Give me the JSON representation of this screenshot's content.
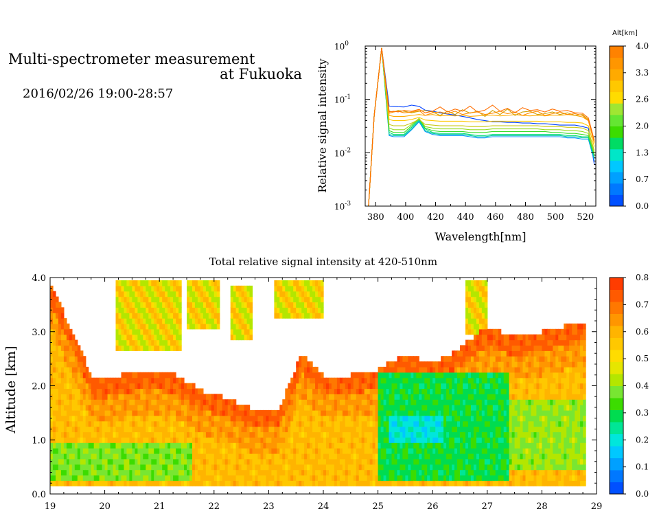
{
  "header": {
    "title_line1": "Multi-spectrometer measurement",
    "title_line2": "at Fukuoka",
    "timerange": "2016/02/26 19:00-28:57"
  },
  "chart_data": [
    {
      "type": "line",
      "title": "",
      "xlabel": "Wavelength[nm]",
      "ylabel": "Relative signal intensity",
      "xlim": [
        373,
        527
      ],
      "ylim": [
        0.001,
        1
      ],
      "yscale": "log",
      "x_ticks": [
        380,
        400,
        420,
        440,
        460,
        480,
        500,
        520
      ],
      "y_ticks": [
        {
          "value": 0.001,
          "base": "10",
          "exp": "-3"
        },
        {
          "value": 0.01,
          "base": "10",
          "exp": "-2"
        },
        {
          "value": 0.1,
          "base": "10",
          "exp": "-1"
        },
        {
          "value": 1,
          "base": "10",
          "exp": "0"
        }
      ],
      "x": [
        375,
        379,
        384,
        389,
        392,
        395,
        399,
        404,
        409,
        413,
        418,
        423,
        428,
        433,
        438,
        443,
        448,
        453,
        458,
        463,
        468,
        473,
        478,
        483,
        488,
        493,
        498,
        503,
        508,
        513,
        518,
        522,
        526
      ],
      "series": [
        {
          "color": "#0040ff",
          "values": [
            0.0008,
            0.05,
            0.92,
            0.075,
            0.074,
            0.073,
            0.072,
            0.078,
            0.074,
            0.063,
            0.06,
            0.056,
            0.053,
            0.051,
            0.048,
            0.045,
            0.042,
            0.04,
            0.038,
            0.038,
            0.037,
            0.037,
            0.036,
            0.036,
            0.035,
            0.035,
            0.034,
            0.033,
            0.033,
            0.033,
            0.031,
            0.029,
            0.006
          ]
        },
        {
          "color": "#0096ff",
          "values": [
            0.0008,
            0.05,
            0.92,
            0.021,
            0.02,
            0.02,
            0.02,
            0.027,
            0.038,
            0.025,
            0.022,
            0.021,
            0.021,
            0.021,
            0.021,
            0.02,
            0.019,
            0.019,
            0.02,
            0.02,
            0.02,
            0.02,
            0.02,
            0.02,
            0.02,
            0.02,
            0.02,
            0.02,
            0.019,
            0.019,
            0.018,
            0.018,
            0.007
          ]
        },
        {
          "color": "#00c8a0",
          "values": [
            0.0008,
            0.05,
            0.92,
            0.022,
            0.021,
            0.021,
            0.021,
            0.028,
            0.04,
            0.026,
            0.023,
            0.022,
            0.022,
            0.022,
            0.022,
            0.021,
            0.02,
            0.02,
            0.021,
            0.021,
            0.021,
            0.021,
            0.021,
            0.021,
            0.021,
            0.021,
            0.021,
            0.021,
            0.02,
            0.02,
            0.019,
            0.019,
            0.008
          ]
        },
        {
          "color": "#00dc78",
          "values": [
            0.0008,
            0.05,
            0.92,
            0.024,
            0.022,
            0.022,
            0.022,
            0.03,
            0.042,
            0.028,
            0.024,
            0.023,
            0.023,
            0.023,
            0.023,
            0.022,
            0.021,
            0.021,
            0.022,
            0.022,
            0.022,
            0.022,
            0.022,
            0.022,
            0.022,
            0.022,
            0.022,
            0.022,
            0.021,
            0.021,
            0.02,
            0.02,
            0.008
          ]
        },
        {
          "color": "#3cdc28",
          "values": [
            0.0008,
            0.05,
            0.92,
            0.026,
            0.024,
            0.024,
            0.024,
            0.032,
            0.044,
            0.029,
            0.026,
            0.025,
            0.025,
            0.025,
            0.025,
            0.024,
            0.024,
            0.024,
            0.025,
            0.025,
            0.025,
            0.025,
            0.025,
            0.025,
            0.025,
            0.025,
            0.024,
            0.024,
            0.023,
            0.023,
            0.022,
            0.021,
            0.009
          ]
        },
        {
          "color": "#96dc1e",
          "values": [
            0.0008,
            0.05,
            0.92,
            0.029,
            0.027,
            0.027,
            0.027,
            0.034,
            0.044,
            0.031,
            0.029,
            0.028,
            0.028,
            0.028,
            0.028,
            0.027,
            0.027,
            0.027,
            0.028,
            0.028,
            0.028,
            0.028,
            0.028,
            0.028,
            0.028,
            0.027,
            0.027,
            0.027,
            0.026,
            0.026,
            0.025,
            0.023,
            0.01
          ]
        },
        {
          "color": "#c8c814",
          "values": [
            0.0008,
            0.05,
            0.92,
            0.034,
            0.032,
            0.032,
            0.032,
            0.036,
            0.042,
            0.034,
            0.033,
            0.032,
            0.032,
            0.032,
            0.032,
            0.031,
            0.031,
            0.031,
            0.032,
            0.032,
            0.032,
            0.032,
            0.032,
            0.032,
            0.032,
            0.031,
            0.031,
            0.031,
            0.03,
            0.03,
            0.029,
            0.026,
            0.011
          ]
        },
        {
          "color": "#ffc800",
          "values": [
            0.0008,
            0.05,
            0.92,
            0.042,
            0.04,
            0.04,
            0.04,
            0.042,
            0.046,
            0.041,
            0.04,
            0.039,
            0.039,
            0.039,
            0.039,
            0.038,
            0.038,
            0.038,
            0.039,
            0.039,
            0.039,
            0.039,
            0.039,
            0.039,
            0.039,
            0.038,
            0.038,
            0.038,
            0.037,
            0.037,
            0.036,
            0.032,
            0.013
          ]
        },
        {
          "color": "#ffaa00",
          "values": [
            0.0008,
            0.05,
            0.92,
            0.05,
            0.048,
            0.048,
            0.048,
            0.05,
            0.052,
            0.05,
            0.052,
            0.049,
            0.05,
            0.049,
            0.051,
            0.048,
            0.049,
            0.05,
            0.051,
            0.049,
            0.05,
            0.052,
            0.05,
            0.049,
            0.05,
            0.049,
            0.051,
            0.05,
            0.052,
            0.05,
            0.047,
            0.04,
            0.015
          ]
        },
        {
          "color": "#d2a000",
          "values": [
            0.0008,
            0.05,
            0.92,
            0.06,
            0.058,
            0.062,
            0.06,
            0.056,
            0.06,
            0.062,
            0.058,
            0.05,
            0.06,
            0.052,
            0.064,
            0.055,
            0.06,
            0.048,
            0.062,
            0.052,
            0.066,
            0.05,
            0.058,
            0.06,
            0.052,
            0.054,
            0.058,
            0.052,
            0.056,
            0.05,
            0.052,
            0.042,
            0.016
          ]
        },
        {
          "color": "#ff8c00",
          "values": [
            0.0008,
            0.05,
            0.92,
            0.055,
            0.058,
            0.06,
            0.056,
            0.058,
            0.062,
            0.05,
            0.056,
            0.058,
            0.054,
            0.06,
            0.052,
            0.056,
            0.058,
            0.052,
            0.055,
            0.06,
            0.054,
            0.058,
            0.05,
            0.056,
            0.06,
            0.05,
            0.054,
            0.058,
            0.052,
            0.054,
            0.05,
            0.04,
            0.016
          ]
        },
        {
          "color": "#ff6e00",
          "values": [
            0.0008,
            0.05,
            0.92,
            0.058,
            0.06,
            0.058,
            0.062,
            0.06,
            0.065,
            0.056,
            0.06,
            0.072,
            0.058,
            0.066,
            0.06,
            0.075,
            0.058,
            0.063,
            0.078,
            0.06,
            0.068,
            0.056,
            0.07,
            0.062,
            0.064,
            0.058,
            0.066,
            0.06,
            0.062,
            0.056,
            0.055,
            0.045,
            0.017
          ]
        }
      ],
      "colorbar": {
        "label": "Alt[km]",
        "ticks": [
          "0.0",
          "0.7",
          "1.3",
          "2.0",
          "2.6",
          "3.3",
          "4.0"
        ],
        "colors": [
          "#0050ff",
          "#0078ff",
          "#00a0ff",
          "#00c8ff",
          "#00e6c8",
          "#00dc64",
          "#3cdc00",
          "#64e632",
          "#a0e632",
          "#ffdc00",
          "#ffc800",
          "#ffaa00",
          "#ff9600",
          "#ff8200"
        ]
      }
    },
    {
      "type": "heatmap",
      "title": "Total relative signal intensity at 420-510nm",
      "xlabel": "",
      "ylabel": "Altitude [km]",
      "xlim": [
        19,
        29
      ],
      "ylim": [
        0,
        4
      ],
      "x_ticks": [
        "19",
        "20",
        "21",
        "22",
        "23",
        "24",
        "25",
        "26",
        "27",
        "28",
        "29"
      ],
      "y_ticks": [
        "0.0",
        "1.0",
        "2.0",
        "3.0",
        "4.0"
      ],
      "clim": [
        0,
        0.8
      ],
      "colorbar": {
        "ticks": [
          "0.0",
          "0.1",
          "0.2",
          "0.3",
          "0.4",
          "0.5",
          "0.6",
          "0.7",
          "0.8"
        ],
        "colors": [
          "#0050ff",
          "#0078ff",
          "#00a0ff",
          "#00c8ff",
          "#00e6dc",
          "#00e696",
          "#00dc50",
          "#3cdc00",
          "#78e632",
          "#b4e600",
          "#e6e600",
          "#ffdc00",
          "#ffc800",
          "#ffb400",
          "#ff9600",
          "#ff7800",
          "#ff5a00",
          "#ff3c00"
        ]
      },
      "cloud_top_km": [
        {
          "t": 19.0,
          "top": 3.9
        },
        {
          "t": 19.5,
          "top": 2.8
        },
        {
          "t": 19.8,
          "top": 2.1
        },
        {
          "t": 20.3,
          "top": 2.2
        },
        {
          "t": 20.8,
          "top": 2.3
        },
        {
          "t": 21.3,
          "top": 2.2
        },
        {
          "t": 21.8,
          "top": 1.9
        },
        {
          "t": 22.3,
          "top": 1.75
        },
        {
          "t": 22.8,
          "top": 1.55
        },
        {
          "t": 23.2,
          "top": 1.6
        },
        {
          "t": 23.6,
          "top": 2.6
        },
        {
          "t": 24.0,
          "top": 2.2
        },
        {
          "t": 24.5,
          "top": 2.2
        },
        {
          "t": 25.0,
          "top": 2.3
        },
        {
          "t": 25.5,
          "top": 2.6
        },
        {
          "t": 26.0,
          "top": 2.4
        },
        {
          "t": 26.5,
          "top": 2.7
        },
        {
          "t": 27.0,
          "top": 3.1
        },
        {
          "t": 27.5,
          "top": 2.9
        },
        {
          "t": 28.0,
          "top": 3.0
        },
        {
          "t": 28.4,
          "top": 3.1
        },
        {
          "t": 28.8,
          "top": 3.2
        }
      ],
      "upper_cloud_patches": [
        {
          "t0": 20.2,
          "t1": 21.4,
          "bottom": 2.7,
          "top": 4.0
        },
        {
          "t0": 21.5,
          "t1": 22.1,
          "bottom": 3.1,
          "top": 4.0
        },
        {
          "t0": 22.3,
          "t1": 22.7,
          "bottom": 2.9,
          "top": 3.9
        },
        {
          "t0": 23.1,
          "t1": 24.0,
          "bottom": 3.3,
          "top": 4.0
        },
        {
          "t0": 26.6,
          "t1": 27.0,
          "bottom": 3.0,
          "top": 4.0
        }
      ],
      "low_value_regions": [
        {
          "t0": 25.0,
          "t1": 27.4,
          "bottom": 0.3,
          "top": 2.3,
          "value": 0.3
        },
        {
          "t0": 25.2,
          "t1": 26.2,
          "bottom": 0.9,
          "top": 1.5,
          "value": 0.2
        },
        {
          "t0": 19.0,
          "t1": 21.6,
          "bottom": 0.3,
          "top": 0.9,
          "value": 0.38
        },
        {
          "t0": 27.4,
          "t1": 28.8,
          "bottom": 0.4,
          "top": 1.8,
          "value": 0.4
        }
      ]
    }
  ]
}
